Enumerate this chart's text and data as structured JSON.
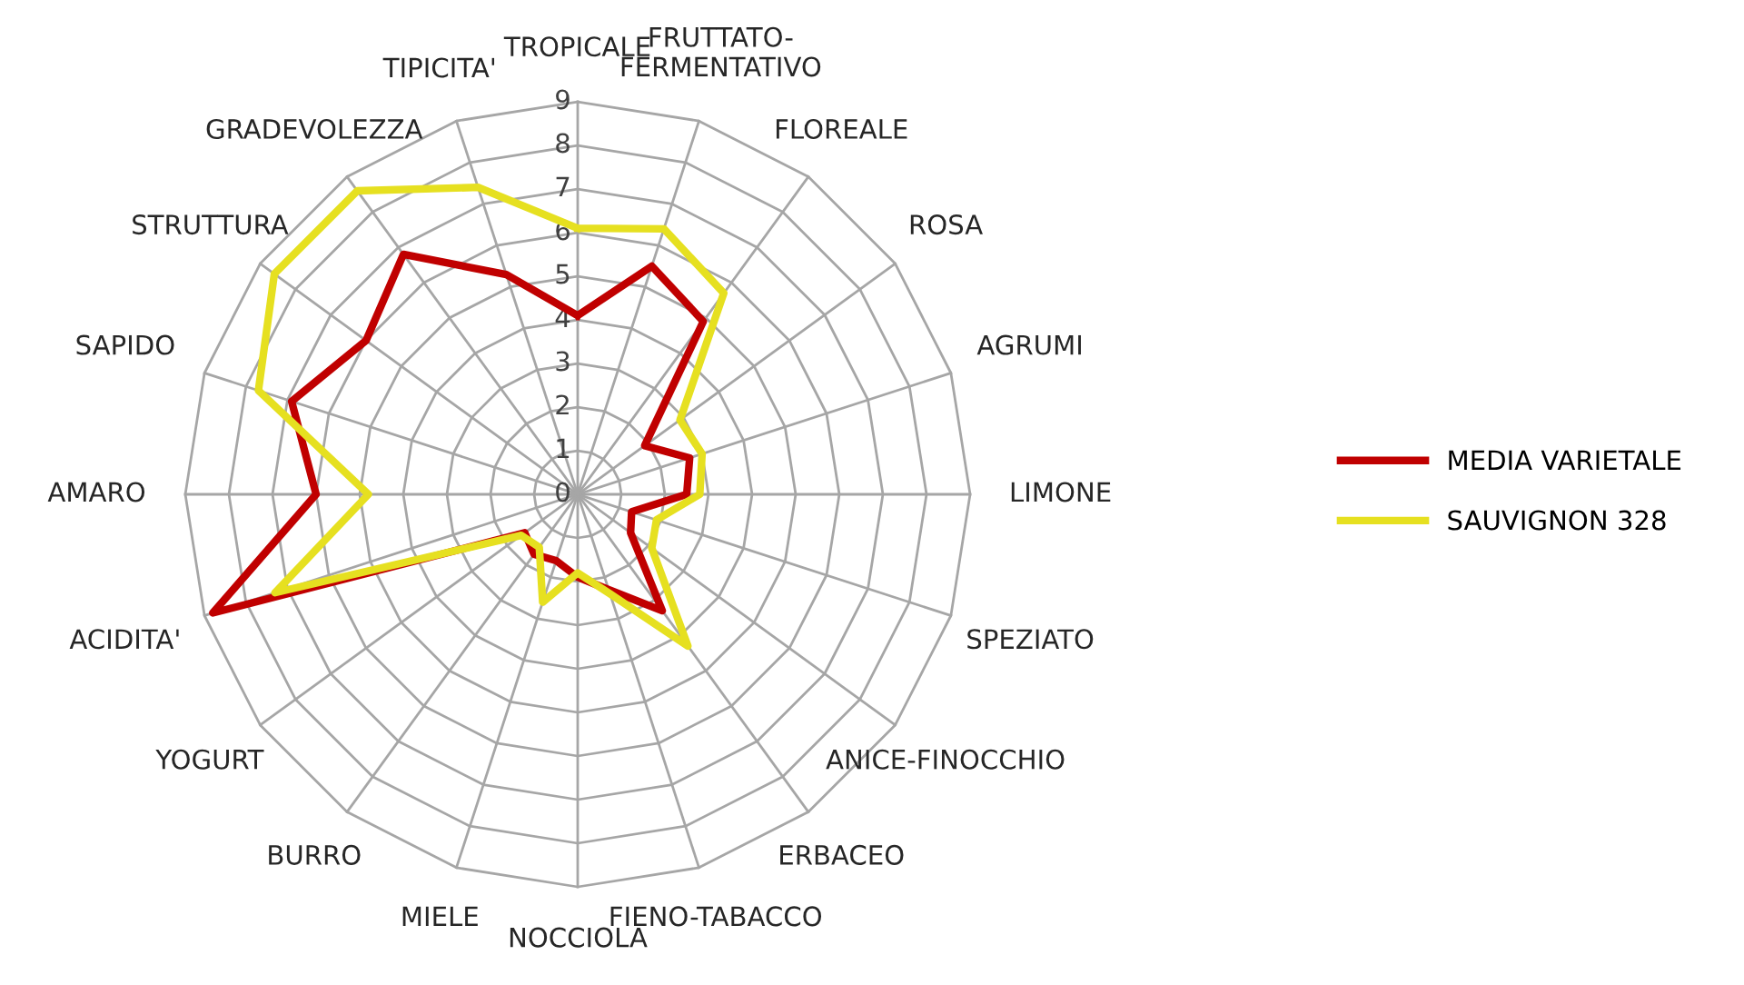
{
  "chart_data": {
    "type": "radar",
    "categories": [
      "TROPICALE",
      "FRUTTATO-\nFERMENTATIVO",
      "FLOREALE",
      "ROSA",
      "AGRUMI",
      "LIMONE",
      "SPEZIATO",
      "ANICE-FINOCCHIO",
      "ERBACEO",
      "FIENO-TABACCO",
      "NOCCIOLA",
      "MIELE",
      "BURRO",
      "YOGURT",
      "ACIDITA'",
      "AMARO",
      "SAPIDO",
      "STRUTTURA",
      "GRADEVOLEZZA",
      "TIPICITA'"
    ],
    "series": [
      {
        "name": "MEDIA VARIETALE",
        "color": "#c00000",
        "values": [
          4.1,
          5.5,
          4.9,
          1.9,
          2.7,
          2.5,
          1.3,
          1.5,
          3.3,
          2.3,
          1.9,
          1.6,
          1.7,
          1.5,
          8.8,
          6.0,
          6.9,
          6.0,
          6.8,
          5.3
        ]
      },
      {
        "name": "SAUVIGNON 328",
        "color": "#e6e020",
        "values": [
          6.1,
          6.4,
          5.7,
          2.9,
          3.0,
          2.8,
          1.9,
          2.1,
          4.3,
          2.4,
          1.8,
          2.6,
          1.5,
          1.6,
          7.3,
          4.8,
          7.7,
          8.6,
          8.6,
          7.4
        ]
      }
    ],
    "ylim": [
      0,
      9
    ],
    "yticks": [
      0,
      1,
      2,
      3,
      4,
      5,
      6,
      7,
      8,
      9
    ],
    "grid": true,
    "legend": "right",
    "marker": "none",
    "line_style": "solid"
  }
}
